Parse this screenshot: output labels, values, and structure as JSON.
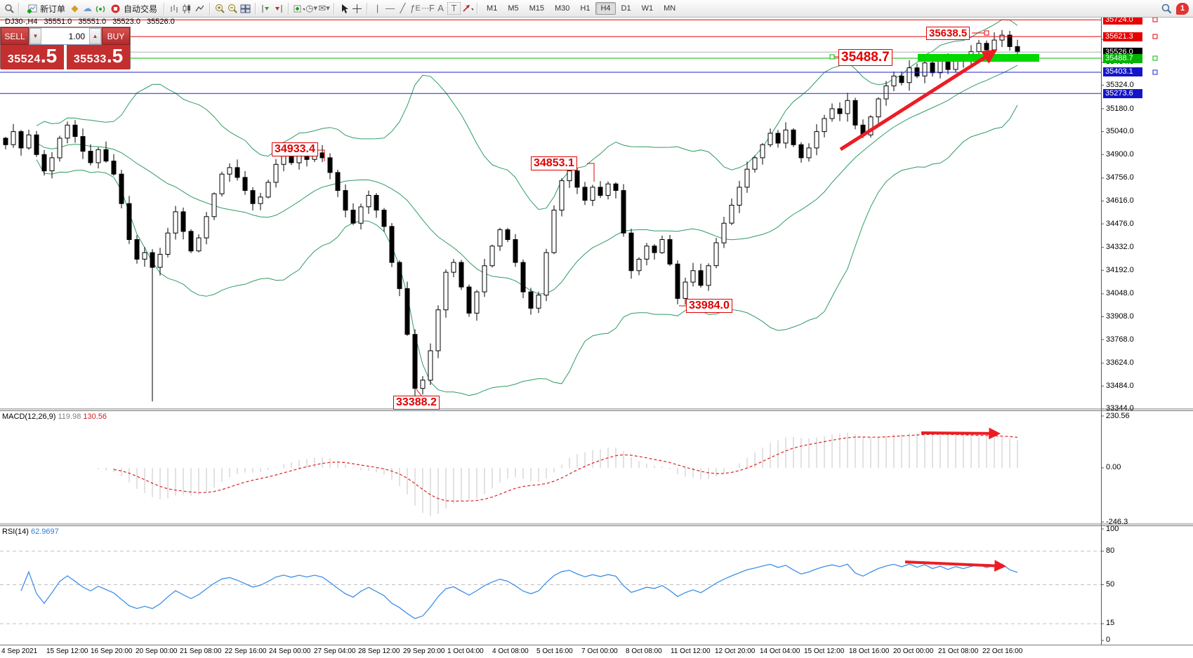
{
  "toolbar": {
    "new_order_label": "新订单",
    "autotrade_label": "自动交易",
    "timeframes": [
      "M1",
      "M5",
      "M15",
      "M30",
      "H1",
      "H4",
      "D1",
      "W1",
      "MN"
    ],
    "active_timeframe": "H4",
    "notification_count": "1"
  },
  "chart": {
    "symbol": "DJ30-,H4",
    "ohlc": {
      "open": "35551.0",
      "high": "35551.0",
      "low": "35523.0",
      "close": "35526.0"
    },
    "trade_panel": {
      "sell_label": "SELL",
      "buy_label": "BUY",
      "volume": "1.00",
      "sell_price_main": "35524",
      "sell_price_big": ".5",
      "buy_price_main": "35533",
      "buy_price_big": ".5"
    },
    "annotations": {
      "a35638": "35638.5",
      "a35488": "35488.7",
      "a34933": "34933.4",
      "a34853": "34853.1",
      "a33984": "33984.0",
      "a33388": "33388.2"
    }
  },
  "indicators": {
    "macd": {
      "label": "MACD(12,26,9)",
      "value1": "119.98",
      "value2": "130.56",
      "scale": [
        "230.56",
        "0.00",
        "-246.3"
      ]
    },
    "rsi": {
      "label": "RSI(14)",
      "value": "62.9697",
      "scale": [
        "100",
        "80",
        "50",
        "15",
        "0"
      ]
    }
  },
  "chart_data": {
    "type": "candlestick+indicators",
    "symbol": "DJ30-",
    "timeframe": "H4",
    "y_axis_ticks": [
      "35748.0",
      "35604.0",
      "35464.0",
      "35324.0",
      "35180.0",
      "35040.0",
      "34900.0",
      "34756.0",
      "34616.0",
      "34476.0",
      "34332.0",
      "34192.0",
      "34048.0",
      "33908.0",
      "33768.0",
      "33624.0",
      "33484.0",
      "33344.0"
    ],
    "price_lines": [
      {
        "value": "35724.0",
        "price": 35724.0,
        "color": "#e60000",
        "badge": "#e60000"
      },
      {
        "value": "35621.3",
        "price": 35621.3,
        "color": "#e60000",
        "badge": "#e60000"
      },
      {
        "value": "35526.0",
        "price": 35526.0,
        "color": "#b0b0b0",
        "badge": "#000000"
      },
      {
        "value": "35488.7",
        "price": 35488.7,
        "color": "#00b800",
        "badge": "#00b400"
      },
      {
        "value": "35403.1",
        "price": 35403.1,
        "color": "#2222cc",
        "badge": "#1515c8"
      },
      {
        "value": "35273.6",
        "price": 35273.6,
        "color": "#2222cc",
        "badge": "#1515c8"
      }
    ],
    "x_axis_labels": [
      "4 Sep 2021",
      "15 Sep 12:00",
      "16 Sep 20:00",
      "20 Sep 00:00",
      "21 Sep 08:00",
      "22 Sep 16:00",
      "24 Sep 00:00",
      "27 Sep 04:00",
      "28 Sep 12:00",
      "29 Sep 20:00",
      "1 Oct 04:00",
      "4 Oct 08:00",
      "5 Oct 16:00",
      "7 Oct 00:00",
      "8 Oct 08:00",
      "11 Oct 12:00",
      "12 Oct 20:00",
      "14 Oct 04:00",
      "15 Oct 12:00",
      "18 Oct 16:00",
      "20 Oct 00:00",
      "21 Oct 08:00",
      "22 Oct 16:00"
    ],
    "closes": [
      34960,
      35040,
      34940,
      35020,
      34900,
      34800,
      34880,
      35000,
      35080,
      35010,
      34920,
      34850,
      34930,
      34860,
      34780,
      34600,
      34380,
      34260,
      34300,
      34210,
      34290,
      34420,
      34550,
      34430,
      34310,
      34390,
      34520,
      34660,
      34780,
      34820,
      34760,
      34680,
      34600,
      34640,
      34730,
      34840,
      34890,
      34850,
      34900,
      34870,
      34910,
      34880,
      34790,
      34680,
      34560,
      34480,
      34580,
      34650,
      34560,
      34460,
      34240,
      34080,
      33800,
      33470,
      33520,
      33700,
      33950,
      34180,
      34240,
      34090,
      33930,
      34060,
      34220,
      34340,
      34440,
      34380,
      34240,
      34060,
      33960,
      34040,
      34300,
      34560,
      34740,
      34800,
      34700,
      34620,
      34700,
      34650,
      34720,
      34680,
      34420,
      34190,
      34260,
      34340,
      34300,
      34380,
      34230,
      34020,
      34120,
      34190,
      34100,
      34220,
      34360,
      34480,
      34590,
      34700,
      34810,
      34880,
      34960,
      35030,
      34970,
      35050,
      34960,
      34880,
      34940,
      35040,
      35120,
      35180,
      35150,
      35230,
      35080,
      35020,
      35130,
      35240,
      35320,
      35380,
      35340,
      35430,
      35380,
      35460,
      35400,
      35470,
      35420,
      35500,
      35470,
      35530,
      35580,
      35540,
      35600,
      35630,
      35560,
      35526
    ],
    "wick_overrides": {
      "19": {
        "low": 33390
      },
      "40": {
        "high": 34933.4
      },
      "53": {
        "low": 33388.2
      },
      "73": {
        "high": 34853.1
      },
      "87": {
        "low": 33984.0
      },
      "129": {
        "high": 35661
      }
    },
    "bollinger": {
      "period": 20,
      "deviation": 2,
      "color": "#2e9b63"
    },
    "macd_params": {
      "fast": 12,
      "slow": 26,
      "signal": 9,
      "scale_max": 230.56,
      "scale_min": -246.3
    },
    "rsi_params": {
      "period": 14,
      "levels": [
        80,
        50,
        15
      ],
      "color": "#3f8fe8"
    },
    "y_axis_range": [
      33344,
      35748
    ]
  },
  "colors": {
    "red_line": "#e60000",
    "blue_line": "#2222cc",
    "green_line": "#00b800",
    "last_price_line": "#b0b0b0",
    "green_zone": "#00d800",
    "arrow_red": "#ed1c24",
    "macd_hist": "#c4c4c4",
    "macd_signal": "#dd2222",
    "rsi_line": "#3f8fe8"
  }
}
